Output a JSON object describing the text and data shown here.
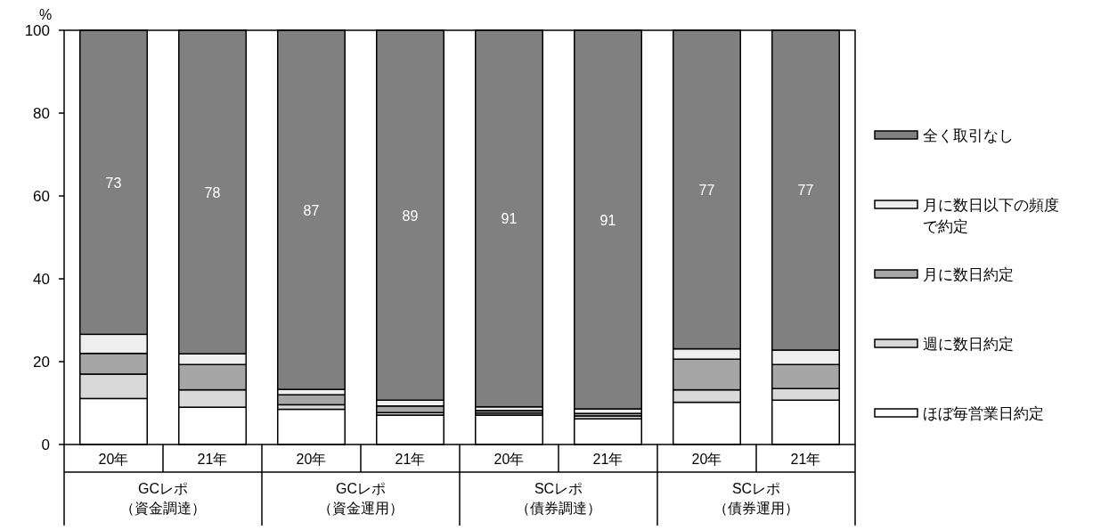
{
  "chart_data": {
    "type": "bar",
    "stacked": true,
    "ylabel": "%",
    "ylim": [
      0,
      100
    ],
    "yticks": [
      0,
      20,
      40,
      60,
      80,
      100
    ],
    "grid": false,
    "legend": "right",
    "categories": [
      "20年",
      "21年",
      "20年",
      "21年",
      "20年",
      "21年",
      "20年",
      "21年"
    ],
    "annotations": [
      "GCレポ（資金調達）",
      "GCレポ（資金運用）",
      "SCレポ（債券調達）",
      "SCレポ（債券運用）"
    ],
    "series": [
      {
        "name": "ほぼ毎営業日約定",
        "color": "#ffffff",
        "values": [
          11.1,
          9.0,
          8.5,
          7.1,
          7.1,
          6.2,
          10.2,
          10.7
        ]
      },
      {
        "name": "週に数日約定",
        "color": "#d9d9d9",
        "values": [
          5.9,
          4.2,
          1.1,
          0.6,
          0.5,
          0.7,
          3.0,
          2.8
        ]
      },
      {
        "name": "月に数日約定",
        "color": "#a6a6a6",
        "values": [
          5.0,
          6.1,
          2.4,
          1.6,
          0.6,
          0.6,
          7.4,
          5.8
        ]
      },
      {
        "name": "月に数日以下の頻度で約定",
        "color": "#eeeeee",
        "values": [
          4.6,
          2.6,
          1.3,
          1.4,
          0.9,
          1.1,
          2.5,
          3.5
        ]
      },
      {
        "name": "全く取引なし",
        "color": "#808080",
        "values": [
          73.4,
          78.1,
          86.7,
          89.3,
          90.9,
          91.4,
          76.9,
          77.2
        ],
        "value_labels": [
          "73",
          "78",
          "87",
          "89",
          "91",
          "91",
          "77",
          "77"
        ]
      }
    ]
  }
}
